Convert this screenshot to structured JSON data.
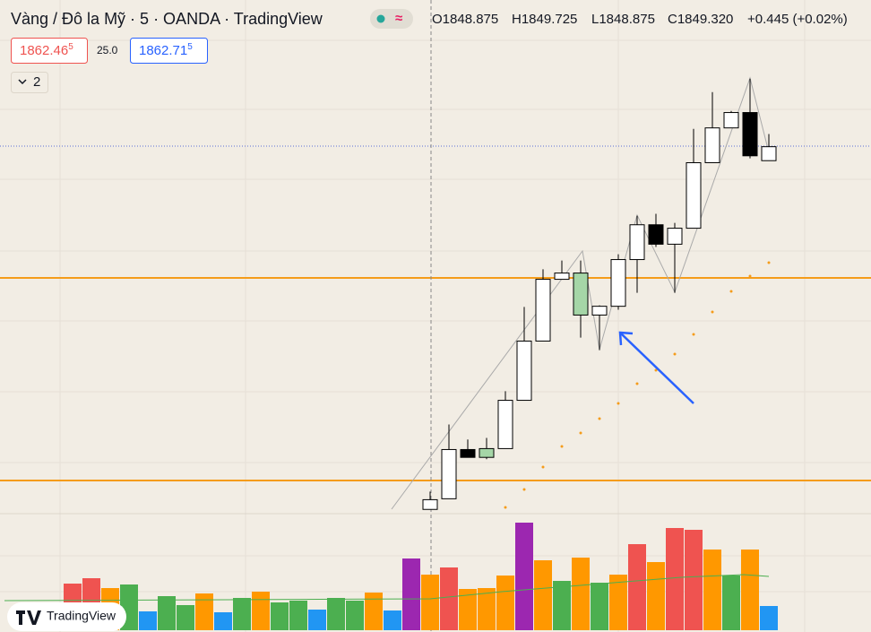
{
  "chart_data": {
    "type": "candlestick",
    "title": "Vàng / Đô la Mỹ · 5 · OANDA · TradingView",
    "ohlc_labels": [
      "O1848.875",
      "H1849.725",
      "L1848.875",
      "C1849.320",
      "+0.445 (+0.02%)"
    ],
    "sell_price": "1862.46",
    "sell_price_sup": "5",
    "spread": "25.0",
    "buy_price": "1862.71",
    "buy_price_sup": "5",
    "indicator_count": "2",
    "logo_text": "TradingView",
    "ylim": [
      1837.7,
      1854.0
    ],
    "open": [
      null,
      null,
      null,
      null,
      null,
      null,
      null,
      null,
      null,
      null,
      null,
      null,
      null,
      null,
      null,
      null,
      null,
      null,
      null,
      1837.75,
      1838.09,
      1839.66,
      1839.41,
      1839.69,
      1841.23,
      1843.12,
      1845.09,
      1845.29,
      1843.95,
      1844.23,
      1845.72,
      1846.83,
      1846.21,
      1846.72,
      1848.81,
      1849.92,
      1850.41,
      1848.875
    ],
    "high": [
      null,
      null,
      null,
      null,
      null,
      null,
      null,
      null,
      null,
      null,
      null,
      null,
      null,
      null,
      null,
      null,
      null,
      null,
      null,
      1838.32,
      1840.46,
      1839.98,
      1840.03,
      1841.52,
      1844.21,
      1845.41,
      1845.69,
      1845.69,
      1844.26,
      1845.89,
      1847.12,
      1847.18,
      1846.89,
      1849.89,
      1851.06,
      1850.46,
      1851.49,
      1849.725
    ],
    "low": [
      null,
      null,
      null,
      null,
      null,
      null,
      null,
      null,
      null,
      null,
      null,
      null,
      null,
      null,
      null,
      null,
      null,
      null,
      null,
      1837.75,
      1838.09,
      1839.41,
      1839.35,
      1839.69,
      1841.23,
      1843.12,
      1845.09,
      1843.23,
      1842.83,
      1844.12,
      1844.66,
      1846.12,
      1844.66,
      1846.72,
      1848.81,
      1849.92,
      1848.95,
      1848.875
    ],
    "close": [
      null,
      null,
      null,
      null,
      null,
      null,
      null,
      null,
      null,
      null,
      null,
      null,
      null,
      null,
      null,
      null,
      null,
      null,
      null,
      1838.06,
      1839.66,
      1839.41,
      1839.69,
      1841.23,
      1843.12,
      1845.09,
      1845.29,
      1843.95,
      1844.23,
      1845.72,
      1846.83,
      1846.21,
      1846.72,
      1848.81,
      1849.92,
      1850.41,
      1849.03,
      1849.32
    ],
    "candle_colors": [
      null,
      null,
      null,
      null,
      null,
      null,
      null,
      null,
      null,
      null,
      null,
      null,
      null,
      null,
      null,
      null,
      null,
      null,
      null,
      "#ffffff",
      "#ffffff",
      "#000000",
      "#a5d6a7",
      "#ffffff",
      "#ffffff",
      "#ffffff",
      "#ffffff",
      "#a5d6a7",
      "#ffffff",
      "#ffffff",
      "#ffffff",
      "#000000",
      "#ffffff",
      "#ffffff",
      "#ffffff",
      "#ffffff",
      "#000000",
      "#ffffff"
    ],
    "volume": [
      52,
      58,
      47,
      51,
      21,
      38,
      28,
      41,
      20,
      36,
      43,
      31,
      33,
      23,
      36,
      33,
      42,
      22,
      80,
      62,
      70,
      46,
      47,
      61,
      120,
      78,
      55,
      81,
      53,
      62,
      96,
      76,
      114,
      112,
      90,
      61,
      90,
      27
    ],
    "volume_colors": [
      "#ef5350",
      "#ef5350",
      "#ff9800",
      "#4caf50",
      "#2196f3",
      "#4caf50",
      "#4caf50",
      "#ff9800",
      "#2196f3",
      "#4caf50",
      "#ff9800",
      "#4caf50",
      "#4caf50",
      "#2196f3",
      "#4caf50",
      "#4caf50",
      "#ff9800",
      "#2196f3",
      "#9c27b0",
      "#ff9800",
      "#ef5350",
      "#ff9800",
      "#ff9800",
      "#ff9800",
      "#9c27b0",
      "#ff9800",
      "#4caf50",
      "#ff9800",
      "#4caf50",
      "#ff9800",
      "#ef5350",
      "#ff9800",
      "#ef5350",
      "#ef5350",
      "#ff9800",
      "#4caf50",
      "#ff9800",
      "#2196f3"
    ],
    "vlim": [
      0,
      130
    ]
  }
}
